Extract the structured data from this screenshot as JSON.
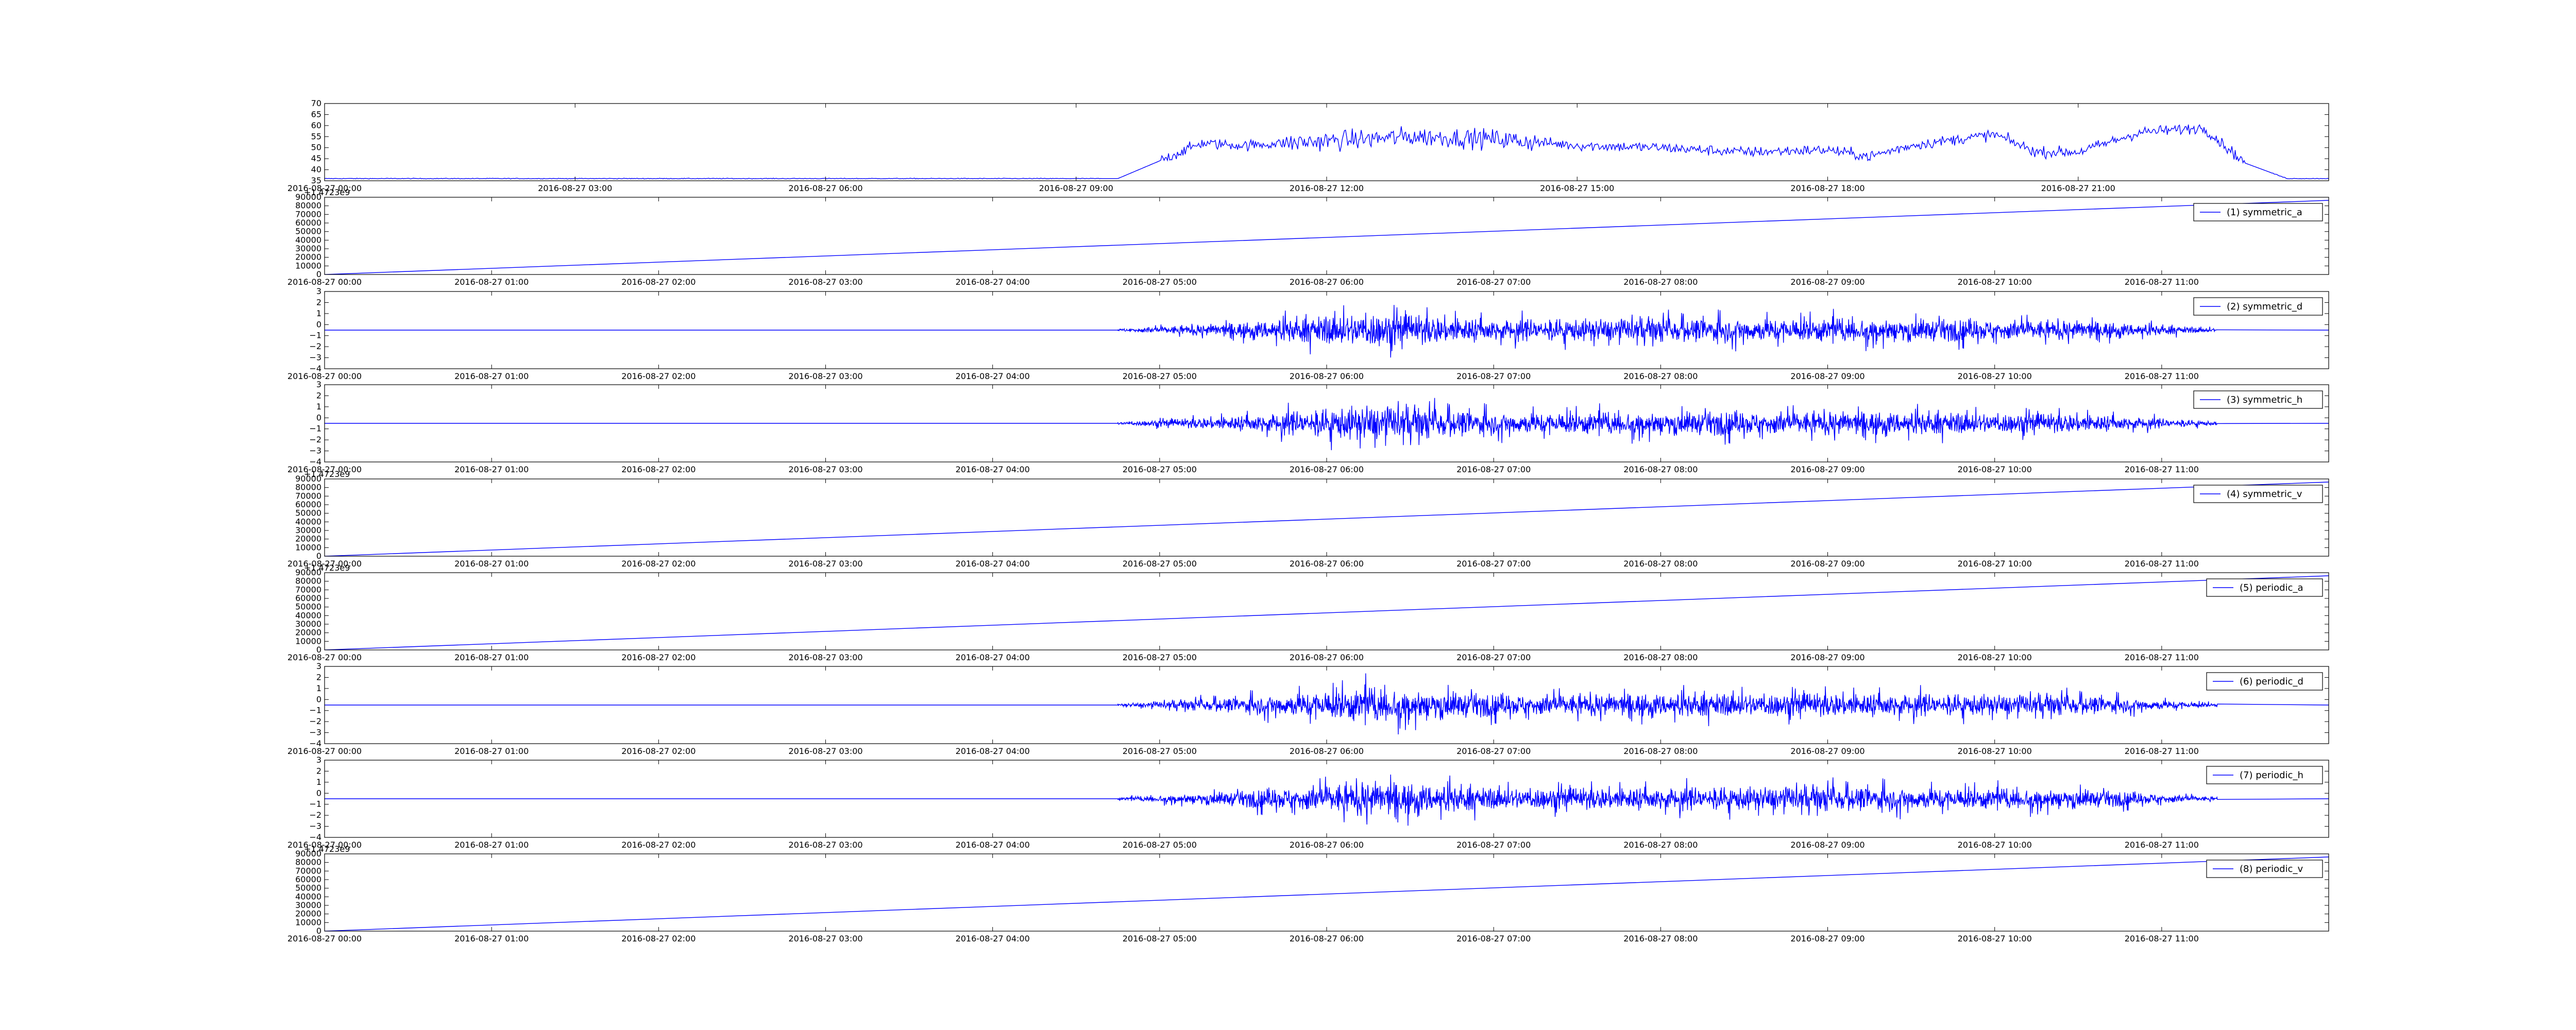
{
  "chart_data": [
    {
      "type": "line",
      "color": "#0000ff",
      "xaxis_type": "datetime",
      "xlim": [
        "2016-08-27 00:00",
        "2016-08-28 00:00"
      ],
      "x_ticks": [
        "2016-08-27 00:00",
        "2016-08-27 03:00",
        "2016-08-27 06:00",
        "2016-08-27 09:00",
        "2016-08-27 12:00",
        "2016-08-27 15:00",
        "2016-08-27 18:00",
        "2016-08-27 21:00"
      ],
      "y_ticks": [
        35,
        40,
        45,
        50,
        55,
        60,
        65,
        70
      ],
      "ylim": [
        35,
        70
      ],
      "legend": null,
      "series": [
        {
          "x": [
            "2016-08-27 00:00",
            "2016-08-27 09:30",
            "2016-08-27 10:00",
            "2016-08-27 10:30",
            "2016-08-27 11:00",
            "2016-08-27 12:00",
            "2016-08-27 13:00",
            "2016-08-27 14:00",
            "2016-08-27 15:00",
            "2016-08-27 16:00",
            "2016-08-27 17:00",
            "2016-08-27 18:00",
            "2016-08-27 18:30",
            "2016-08-27 19:00",
            "2016-08-27 20:00",
            "2016-08-27 20:30",
            "2016-08-27 21:00",
            "2016-08-27 21:45",
            "2016-08-27 22:30",
            "2016-08-27 23:00",
            "2016-08-27 23:30",
            "2016-08-28 00:00"
          ],
          "values": [
            36,
            36,
            44,
            52,
            51,
            53,
            55,
            54,
            51,
            50,
            48,
            49,
            46,
            51,
            56,
            48,
            48,
            57,
            59,
            43,
            36,
            36
          ]
        }
      ]
    },
    {
      "type": "line",
      "color": "#0000ff",
      "xaxis_type": "datetime",
      "xlim": [
        "2016-08-27 00:00",
        "2016-08-27 12:00"
      ],
      "x_ticks": [
        "2016-08-27 00:00",
        "2016-08-27 01:00",
        "2016-08-27 02:00",
        "2016-08-27 03:00",
        "2016-08-27 04:00",
        "2016-08-27 05:00",
        "2016-08-27 06:00",
        "2016-08-27 07:00",
        "2016-08-27 08:00",
        "2016-08-27 09:00",
        "2016-08-27 10:00",
        "2016-08-27 11:00"
      ],
      "offset_label": "+1.4723e9",
      "y_ticks": [
        0,
        10000,
        20000,
        30000,
        40000,
        50000,
        60000,
        70000,
        80000,
        90000
      ],
      "ylim": [
        0,
        90000
      ],
      "legend": {
        "label": "(1) symmetric_a",
        "position": "top-right"
      },
      "series": [
        {
          "name": "(1) symmetric_a",
          "x": [
            "2016-08-27 00:00",
            "2016-08-27 12:00"
          ],
          "values": [
            0,
            86400
          ]
        }
      ]
    },
    {
      "type": "line",
      "color": "#0000ff",
      "xaxis_type": "datetime",
      "xlim": [
        "2016-08-27 00:00",
        "2016-08-27 12:00"
      ],
      "x_ticks": [
        "2016-08-27 00:00",
        "2016-08-27 01:00",
        "2016-08-27 02:00",
        "2016-08-27 03:00",
        "2016-08-27 04:00",
        "2016-08-27 05:00",
        "2016-08-27 06:00",
        "2016-08-27 07:00",
        "2016-08-27 08:00",
        "2016-08-27 09:00",
        "2016-08-27 10:00",
        "2016-08-27 11:00"
      ],
      "y_ticks": [
        -4,
        -3,
        -2,
        -1,
        0,
        1,
        2,
        3
      ],
      "ylim": [
        -4,
        3
      ],
      "baseline": -0.5,
      "active_range": [
        "2016-08-27 04:45",
        "2016-08-27 11:20"
      ],
      "amplitude_profile": [
        [
          "2016-08-27 04:45",
          0.2
        ],
        [
          "2016-08-27 05:00",
          0.6
        ],
        [
          "2016-08-27 05:30",
          1.3
        ],
        [
          "2016-08-27 06:15",
          3.0
        ],
        [
          "2016-08-27 07:00",
          1.8
        ],
        [
          "2016-08-27 09:00",
          2.0
        ],
        [
          "2016-08-27 10:30",
          1.6
        ],
        [
          "2016-08-27 11:20",
          0.3
        ]
      ],
      "legend": {
        "label": "(2) symmetric_d",
        "position": "top-right"
      },
      "series": [
        {
          "name": "(2) symmetric_d"
        }
      ]
    },
    {
      "type": "line",
      "color": "#0000ff",
      "xaxis_type": "datetime",
      "xlim": [
        "2016-08-27 00:00",
        "2016-08-27 12:00"
      ],
      "x_ticks": [
        "2016-08-27 00:00",
        "2016-08-27 01:00",
        "2016-08-27 02:00",
        "2016-08-27 03:00",
        "2016-08-27 04:00",
        "2016-08-27 05:00",
        "2016-08-27 06:00",
        "2016-08-27 07:00",
        "2016-08-27 08:00",
        "2016-08-27 09:00",
        "2016-08-27 10:00",
        "2016-08-27 11:00"
      ],
      "y_ticks": [
        -4,
        -3,
        -2,
        -1,
        0,
        1,
        2,
        3
      ],
      "ylim": [
        -4,
        3
      ],
      "baseline": -0.5,
      "active_range": [
        "2016-08-27 04:45",
        "2016-08-27 11:20"
      ],
      "amplitude_profile": [
        [
          "2016-08-27 04:45",
          0.2
        ],
        [
          "2016-08-27 05:00",
          0.6
        ],
        [
          "2016-08-27 05:30",
          1.3
        ],
        [
          "2016-08-27 06:15",
          3.0
        ],
        [
          "2016-08-27 07:00",
          1.8
        ],
        [
          "2016-08-27 09:00",
          2.0
        ],
        [
          "2016-08-27 10:30",
          1.6
        ],
        [
          "2016-08-27 11:20",
          0.3
        ]
      ],
      "legend": {
        "label": "(3) symmetric_h",
        "position": "top-right"
      },
      "series": [
        {
          "name": "(3) symmetric_h"
        }
      ]
    },
    {
      "type": "line",
      "color": "#0000ff",
      "xaxis_type": "datetime",
      "xlim": [
        "2016-08-27 00:00",
        "2016-08-27 12:00"
      ],
      "x_ticks": [
        "2016-08-27 00:00",
        "2016-08-27 01:00",
        "2016-08-27 02:00",
        "2016-08-27 03:00",
        "2016-08-27 04:00",
        "2016-08-27 05:00",
        "2016-08-27 06:00",
        "2016-08-27 07:00",
        "2016-08-27 08:00",
        "2016-08-27 09:00",
        "2016-08-27 10:00",
        "2016-08-27 11:00"
      ],
      "offset_label": "+1.4723e9",
      "y_ticks": [
        0,
        10000,
        20000,
        30000,
        40000,
        50000,
        60000,
        70000,
        80000,
        90000
      ],
      "ylim": [
        0,
        90000
      ],
      "legend": {
        "label": "(4) symmetric_v",
        "position": "top-right"
      },
      "series": [
        {
          "name": "(4) symmetric_v",
          "x": [
            "2016-08-27 00:00",
            "2016-08-27 12:00"
          ],
          "values": [
            0,
            86400
          ]
        }
      ]
    },
    {
      "type": "line",
      "color": "#0000ff",
      "xaxis_type": "datetime",
      "xlim": [
        "2016-08-27 00:00",
        "2016-08-27 12:00"
      ],
      "x_ticks": [
        "2016-08-27 00:00",
        "2016-08-27 01:00",
        "2016-08-27 02:00",
        "2016-08-27 03:00",
        "2016-08-27 04:00",
        "2016-08-27 05:00",
        "2016-08-27 06:00",
        "2016-08-27 07:00",
        "2016-08-27 08:00",
        "2016-08-27 09:00",
        "2016-08-27 10:00",
        "2016-08-27 11:00"
      ],
      "offset_label": "+1.4723e9",
      "y_ticks": [
        0,
        10000,
        20000,
        30000,
        40000,
        50000,
        60000,
        70000,
        80000,
        90000
      ],
      "ylim": [
        0,
        90000
      ],
      "legend": {
        "label": "(5) periodic_a",
        "position": "top-right"
      },
      "series": [
        {
          "name": "(5) periodic_a",
          "x": [
            "2016-08-27 00:00",
            "2016-08-27 12:00"
          ],
          "values": [
            0,
            86400
          ]
        }
      ]
    },
    {
      "type": "line",
      "color": "#0000ff",
      "xaxis_type": "datetime",
      "xlim": [
        "2016-08-27 00:00",
        "2016-08-27 12:00"
      ],
      "x_ticks": [
        "2016-08-27 00:00",
        "2016-08-27 01:00",
        "2016-08-27 02:00",
        "2016-08-27 03:00",
        "2016-08-27 04:00",
        "2016-08-27 05:00",
        "2016-08-27 06:00",
        "2016-08-27 07:00",
        "2016-08-27 08:00",
        "2016-08-27 09:00",
        "2016-08-27 10:00",
        "2016-08-27 11:00"
      ],
      "y_ticks": [
        -4,
        -3,
        -2,
        -1,
        0,
        1,
        2,
        3
      ],
      "ylim": [
        -4,
        3
      ],
      "baseline": -0.5,
      "active_range": [
        "2016-08-27 04:45",
        "2016-08-27 11:20"
      ],
      "amplitude_profile": [
        [
          "2016-08-27 04:45",
          0.2
        ],
        [
          "2016-08-27 05:00",
          0.6
        ],
        [
          "2016-08-27 05:30",
          1.3
        ],
        [
          "2016-08-27 06:15",
          3.0
        ],
        [
          "2016-08-27 07:00",
          1.8
        ],
        [
          "2016-08-27 09:00",
          2.0
        ],
        [
          "2016-08-27 10:30",
          1.6
        ],
        [
          "2016-08-27 11:20",
          0.3
        ]
      ],
      "legend": {
        "label": "(6) periodic_d",
        "position": "top-right"
      },
      "series": [
        {
          "name": "(6) periodic_d"
        }
      ]
    },
    {
      "type": "line",
      "color": "#0000ff",
      "xaxis_type": "datetime",
      "xlim": [
        "2016-08-27 00:00",
        "2016-08-27 12:00"
      ],
      "x_ticks": [
        "2016-08-27 00:00",
        "2016-08-27 01:00",
        "2016-08-27 02:00",
        "2016-08-27 03:00",
        "2016-08-27 04:00",
        "2016-08-27 05:00",
        "2016-08-27 06:00",
        "2016-08-27 07:00",
        "2016-08-27 08:00",
        "2016-08-27 09:00",
        "2016-08-27 10:00",
        "2016-08-27 11:00"
      ],
      "y_ticks": [
        -4,
        -3,
        -2,
        -1,
        0,
        1,
        2,
        3
      ],
      "ylim": [
        -4,
        3
      ],
      "baseline": -0.5,
      "active_range": [
        "2016-08-27 04:45",
        "2016-08-27 11:20"
      ],
      "amplitude_profile": [
        [
          "2016-08-27 04:45",
          0.2
        ],
        [
          "2016-08-27 05:00",
          0.6
        ],
        [
          "2016-08-27 05:30",
          1.3
        ],
        [
          "2016-08-27 06:15",
          3.0
        ],
        [
          "2016-08-27 07:00",
          1.8
        ],
        [
          "2016-08-27 09:00",
          2.0
        ],
        [
          "2016-08-27 10:30",
          1.6
        ],
        [
          "2016-08-27 11:20",
          0.3
        ]
      ],
      "legend": {
        "label": "(7) periodic_h",
        "position": "top-right"
      },
      "series": [
        {
          "name": "(7) periodic_h"
        }
      ]
    },
    {
      "type": "line",
      "color": "#0000ff",
      "xaxis_type": "datetime",
      "xlim": [
        "2016-08-27 00:00",
        "2016-08-27 12:00"
      ],
      "x_ticks": [
        "2016-08-27 00:00",
        "2016-08-27 01:00",
        "2016-08-27 02:00",
        "2016-08-27 03:00",
        "2016-08-27 04:00",
        "2016-08-27 05:00",
        "2016-08-27 06:00",
        "2016-08-27 07:00",
        "2016-08-27 08:00",
        "2016-08-27 09:00",
        "2016-08-27 10:00",
        "2016-08-27 11:00"
      ],
      "offset_label": "+1.4723e9",
      "y_ticks": [
        0,
        10000,
        20000,
        30000,
        40000,
        50000,
        60000,
        70000,
        80000,
        90000
      ],
      "ylim": [
        0,
        90000
      ],
      "legend": {
        "label": "(8) periodic_v",
        "position": "top-right"
      },
      "series": [
        {
          "name": "(8) periodic_v",
          "x": [
            "2016-08-27 00:00",
            "2016-08-27 12:00"
          ],
          "values": [
            0,
            86400
          ]
        }
      ]
    }
  ]
}
